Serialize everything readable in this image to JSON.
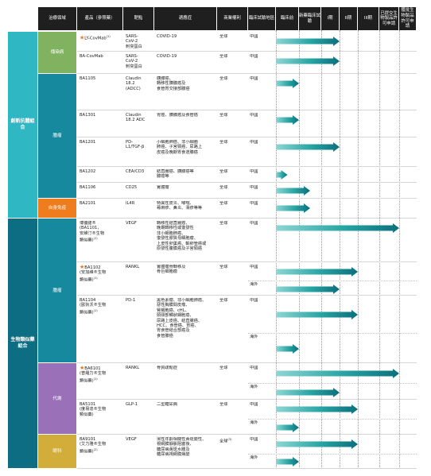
{
  "headers": [
    "治療領域",
    "產品（參照藥）",
    "靶點",
    "適應症",
    "商業權利",
    "臨床試驗地區",
    "臨床前",
    "新藥臨床試驗",
    "I期",
    "II期",
    "III期",
    "已提交生物製品許可申請",
    "獲批生物製品許可申請"
  ],
  "categories": [
    {
      "label": "創新抗體組合"
    },
    {
      "label": "生物類似藥組合"
    }
  ],
  "subcategories": [
    {
      "label": "傳染病"
    },
    {
      "label": "腫瘤"
    },
    {
      "label": "自身免疫"
    },
    {
      "label": "腫瘤"
    },
    {
      "label": "代謝"
    },
    {
      "label": "眼科"
    }
  ],
  "rows": [
    {
      "product": "LY-CovMab",
      "sup": "(1)",
      "star": true,
      "target": "SARS-\nCoV-2\n刺突蛋白",
      "indication": "COVID-19",
      "rights": "全球",
      "region": "中國",
      "stage": 3
    },
    {
      "product": "BA-CovMab",
      "sup": "",
      "star": false,
      "target": "SARS-\nCoV-2\n刺突蛋白",
      "indication": "COVID-19",
      "rights": "全球",
      "region": "中國",
      "stage": 3
    },
    {
      "product": "BA1105",
      "sup": "",
      "star": false,
      "target": "Claudin\n18.2\n(ADCC)",
      "indication": "胰腺癌、\n轉移性胰腺癌及\n食管胃交接部腺癌",
      "rights": "全球",
      "region": "中國",
      "stage": 1
    },
    {
      "product": "BA1301",
      "sup": "",
      "star": false,
      "target": "Claudin\n18.2 ADC",
      "indication": "胃癌、胰腺癌及食管癌",
      "rights": "全球",
      "region": "中國",
      "stage": 1
    },
    {
      "product": "BA1201",
      "sup": "",
      "star": false,
      "target": "PD-\nL1/TGF-β",
      "indication": "小細胞肺癌、非小細胞\n肺癌、子宮頸癌、尿路上\n皮癌及晚期胃食道腺癌",
      "rights": "全球",
      "region": "中國",
      "stage": 3
    },
    {
      "product": "BA1202",
      "sup": "",
      "star": false,
      "target": "CEA/CD3",
      "indication": "結直腸癌、胰腺癌等\n腺癌等",
      "rights": "全球",
      "region": "中國",
      "stage": 0.5
    },
    {
      "product": "BA1106",
      "sup": "",
      "star": false,
      "target": "CD25",
      "indication": "實體瘤",
      "rights": "全球",
      "region": "中國",
      "stage": 1.5
    },
    {
      "product": "BA2101",
      "sup": "",
      "star": false,
      "target": "IL4R",
      "indication": "特異性皮炎、哮喘、\n蕁麻疹、鼻炎、濕疹等等",
      "rights": "全球",
      "region": "中國",
      "stage": 1.5
    },
    {
      "product": "博優諾®\n(BA1101，\n安維汀®生物\n類似藥)",
      "sup": "(1)",
      "star": false,
      "target": "VEGF",
      "indication": "轉移性結直腸癌、\n晚期轉移性或復發性\n非小細胞肺癌、\n復發性膠質母細胞瘤、\n上皮性卵巢癌、輸卵管癌或\n原發性腹膜癌及子宮頸癌",
      "rights": "全球",
      "region": "中國",
      "stage": 6
    },
    {
      "product": "BA1102\n(安加維®生物\n類似藥)",
      "sup": "(1)",
      "star": true,
      "target": "RANKL",
      "indication": "實體瘤骨轉移及\n骨巨細胞瘤",
      "rights": "全球",
      "region": "中國",
      "region2": "海外",
      "stage": 4,
      "stage2": 3
    },
    {
      "product": "BA1104\n(歐狄沃®生物\n類似藥)",
      "sup": "(1)",
      "star": false,
      "target": "PD-1",
      "indication": "黑色素瘤、非小細胞肺癌、\n惡性胸膜間皮瘤、\n腎細胞癌、cHL、\n頭頸部鱗狀細胞癌、\n尿路上皮癌、結直腸癌、\nHCC、食管癌、胃癌、\n胃食管結合部癌及\n食管腺癌",
      "rights": "全球",
      "region": "中國",
      "region2": "海外",
      "stage": 4,
      "stage2": 1
    },
    {
      "product": "BA6101\n(普羅力®生物\n類似藥)",
      "sup": "(1)",
      "star": true,
      "target": "RANKL",
      "indication": "骨質疏鬆症",
      "rights": "全球",
      "region": "中國",
      "region2": "海外",
      "stage": 6,
      "stage2": 3
    },
    {
      "product": "BA5101\n(度易達®生物\n類似藥)",
      "sup": "",
      "star": false,
      "target": "GLP-1",
      "indication": "二型糖尿病",
      "rights": "全球",
      "region": "中國",
      "region2": "海外",
      "stage": 4,
      "stage2": 1
    },
    {
      "product": "BA9101\n(艾力雅®生物\n類似藥)",
      "sup": "(2)",
      "star": false,
      "target": "VEGF",
      "indication": "濕性年齡相關性黃斑變性、\n視網膜靜脈阻塞後、\n糖尿病黃斑水腫及\n糖尿病視網膜病變",
      "rights": "全球",
      "rights_sup": "(3)",
      "region": "中國",
      "region2": "海外",
      "stage": 4,
      "stage2": 1
    }
  ],
  "colors": {
    "header": "#1f1f1f",
    "innovative": "#2fb8c4",
    "biosimilar": "#0d6e83",
    "infectious": "#80b25f",
    "oncology": "#17899f",
    "autoimmune": "#ef7d1e",
    "metabolic": "#9a70b8",
    "ophthalmology": "#d3ad3a",
    "arrow_light": "#8ed6d4",
    "arrow_mid": "#27a4a4",
    "arrow_dark": "#0b6f7c"
  }
}
